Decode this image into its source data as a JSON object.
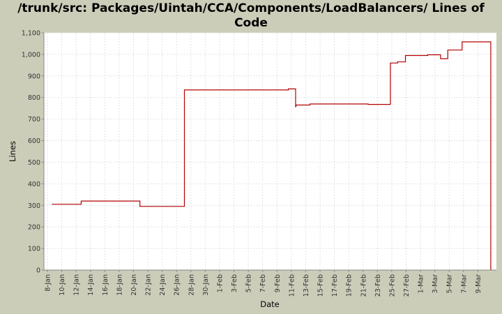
{
  "title": "/trunk/src: Packages/Uintah/CCA/Components/LoadBalancers/ Lines of Code",
  "chart_data": {
    "type": "line",
    "title": "/trunk/src: Packages/Uintah/CCA/Components/LoadBalancers/ Lines of Code",
    "xlabel": "Date",
    "ylabel": "Lines",
    "ylim": [
      0,
      1100
    ],
    "yticks": [
      "0",
      "100",
      "200",
      "300",
      "400",
      "500",
      "600",
      "700",
      "800",
      "900",
      "1,000",
      "1,100"
    ],
    "xticks": [
      "8-Jan",
      "10-Jan",
      "12-Jan",
      "14-Jan",
      "16-Jan",
      "18-Jan",
      "20-Jan",
      "22-Jan",
      "24-Jan",
      "26-Jan",
      "28-Jan",
      "30-Jan",
      "1-Feb",
      "3-Feb",
      "5-Feb",
      "7-Feb",
      "9-Feb",
      "11-Feb",
      "13-Feb",
      "15-Feb",
      "17-Feb",
      "19-Feb",
      "21-Feb",
      "23-Feb",
      "25-Feb",
      "27-Feb",
      "1-Mar",
      "3-Mar",
      "5-Mar",
      "7-Mar",
      "9-Mar"
    ],
    "grid": true,
    "line_color": "#b30000",
    "x_unit": "day index from 8-Jan",
    "series": [
      {
        "step": true,
        "points": [
          [
            0.6,
            305
          ],
          [
            4.7,
            305
          ],
          [
            4.7,
            320
          ],
          [
            12.9,
            320
          ],
          [
            12.9,
            295
          ],
          [
            19.1,
            295
          ],
          [
            19.1,
            835
          ],
          [
            33.6,
            835
          ],
          [
            33.6,
            840
          ],
          [
            34.6,
            840
          ],
          [
            34.6,
            755
          ],
          [
            34.7,
            765
          ],
          [
            36.6,
            765
          ],
          [
            36.6,
            770
          ],
          [
            44.7,
            770
          ],
          [
            44.7,
            768
          ],
          [
            47.8,
            768
          ],
          [
            47.8,
            960
          ],
          [
            48.8,
            960
          ],
          [
            48.8,
            965
          ],
          [
            49.9,
            965
          ],
          [
            49.9,
            995
          ],
          [
            53.0,
            995
          ],
          [
            53.0,
            998
          ],
          [
            54.8,
            998
          ],
          [
            54.8,
            980
          ],
          [
            55.8,
            980
          ],
          [
            55.8,
            1020
          ],
          [
            57.8,
            1020
          ],
          [
            57.8,
            1058
          ],
          [
            61.8,
            1058
          ],
          [
            61.8,
            0
          ]
        ]
      }
    ]
  }
}
